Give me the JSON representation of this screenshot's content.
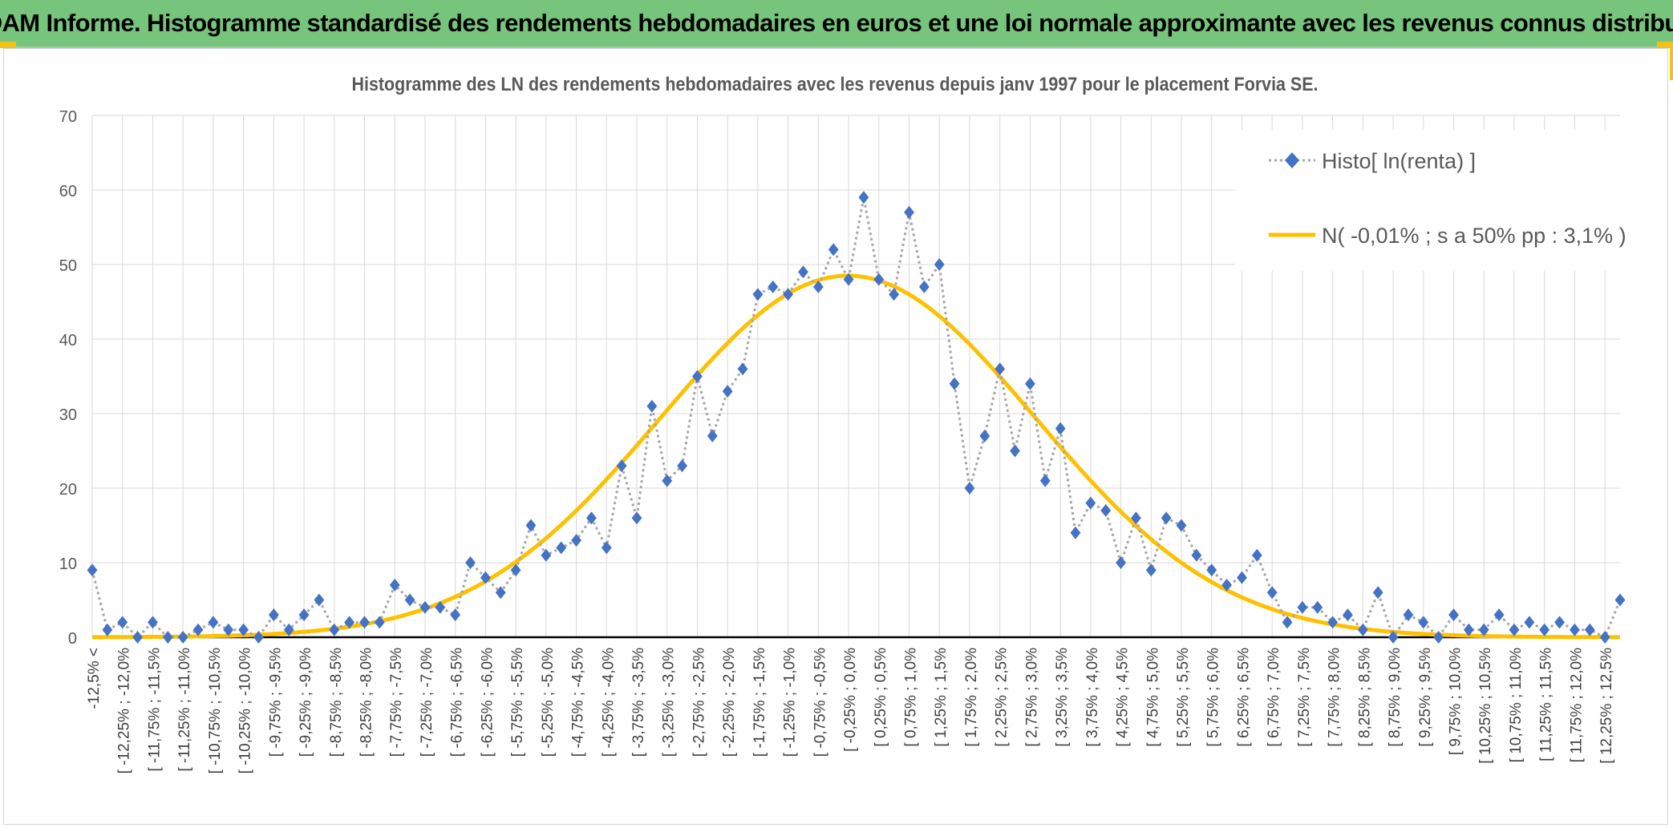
{
  "header": {
    "title": "ADAM Informe. Histogramme standardisé des rendements hebdomadaires en euros et une loi normale approximante avec les revenus connus distribués"
  },
  "colors": {
    "banner": "#77c57c",
    "histo_marker": "#4472c4",
    "histo_line": "#a6a6a6",
    "normal_curve": "#ffc000",
    "grid": "#d9d9d9"
  },
  "chart_data": {
    "type": "line",
    "title": "Histogramme des LN des rendements hebdomadaires avec les revenus depuis janv 1997 pour le placement Forvia SE.",
    "xlabel": "",
    "ylabel": "",
    "ylim": [
      0,
      70
    ],
    "yticks": [
      0,
      10,
      20,
      30,
      40,
      50,
      60,
      70
    ],
    "grid": true,
    "legend_position": "top-right",
    "x_tick_labels": [
      "-12,5% <",
      "[ -12,25% ; -12,0%",
      "[ -11,75% ; -11,5%",
      "[ -11,25% ; -11,0%",
      "[ -10,75% ; -10,5%",
      "[ -10,25% ; -10,0%",
      "[ -9,75% ; -9,5%",
      "[ -9,25% ; -9,0%",
      "[ -8,75% ; -8,5%",
      "[ -8,25% ; -8,0%",
      "[ -7,75% ; -7,5%",
      "[ -7,25% ; -7,0%",
      "[ -6,75% ; -6,5%",
      "[ -6,25% ; -6,0%",
      "[ -5,75% ; -5,5%",
      "[ -5,25% ; -5,0%",
      "[ -4,75% ; -4,5%",
      "[ -4,25% ; -4,0%",
      "[ -3,75% ; -3,5%",
      "[ -3,25% ; -3,0%",
      "[ -2,75% ; -2,5%",
      "[ -2,25% ; -2,0%",
      "[ -1,75% ; -1,5%",
      "[ -1,25% ; -1,0%",
      "[ -0,75% ; -0,5%",
      "[ -0,25% ; 0,0%",
      "[ 0,25% ; 0,5%",
      "[ 0,75% ; 1,0%",
      "[ 1,25% ; 1,5%",
      "[ 1,75% ; 2,0%",
      "[ 2,25% ; 2,5%",
      "[ 2,75% ; 3,0%",
      "[ 3,25% ; 3,5%",
      "[ 3,75% ; 4,0%",
      "[ 4,25% ; 4,5%",
      "[ 4,75% ; 5,0%",
      "[ 5,25% ; 5,5%",
      "[ 5,75% ; 6,0%",
      "[ 6,25% ; 6,5%",
      "[ 6,75% ; 7,0%",
      "[ 7,25% ; 7,5%",
      "[ 7,75% ; 8,0%",
      "[ 8,25% ; 8,5%",
      "[ 8,75% ; 9,0%",
      "[ 9,25% ; 9,5%",
      "[ 9,75% ; 10,0%",
      "[ 10,25% ; 10,5%",
      "[ 10,75% ; 11,0%",
      "[ 11,25% ; 11,5%",
      "[ 11,75% ; 12,0%",
      "[ 12,25% ; 12,5%"
    ],
    "series": [
      {
        "name": "Histo[ ln(renta) ]",
        "style": "dotted-line-diamond-markers",
        "values": [
          9,
          1,
          2,
          0,
          2,
          0,
          0,
          1,
          2,
          1,
          1,
          0,
          3,
          1,
          3,
          5,
          1,
          2,
          2,
          2,
          7,
          5,
          4,
          4,
          3,
          10,
          8,
          6,
          9,
          15,
          11,
          12,
          13,
          16,
          12,
          23,
          16,
          31,
          21,
          23,
          35,
          27,
          33,
          36,
          46,
          47,
          46,
          49,
          47,
          52,
          48,
          59,
          48,
          46,
          57,
          47,
          50,
          34,
          20,
          27,
          36,
          25,
          34,
          21,
          28,
          14,
          18,
          17,
          10,
          16,
          9,
          16,
          15,
          11,
          9,
          7,
          8,
          11,
          6,
          2,
          4,
          4,
          2,
          3,
          1,
          6,
          0,
          3,
          2,
          0,
          3,
          1,
          1,
          3,
          1,
          2,
          1,
          2,
          1,
          1,
          0,
          5
        ]
      },
      {
        "name": "N( -0,01% ; s a 50% pp : 3,1% )",
        "style": "smooth-line",
        "mean_percent": -0.01,
        "sd_percent": 3.1,
        "peak": 48.5
      }
    ]
  }
}
